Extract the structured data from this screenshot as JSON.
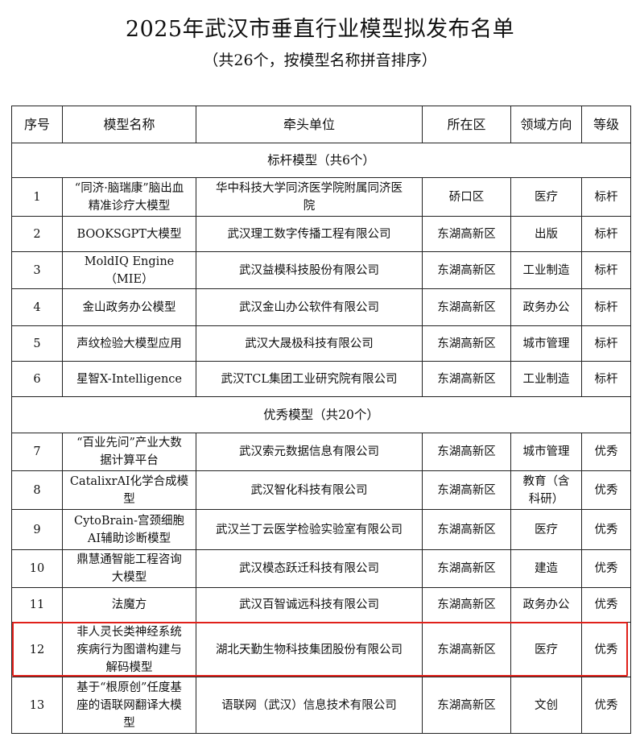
{
  "title": "2025年武汉市垂直行业模型拟发布名单",
  "subtitle": "（共26个，按模型名称拼音排序）",
  "columns": [
    "序号",
    "模型名称",
    "牵头单位",
    "所在区",
    "领域方向",
    "等级"
  ],
  "sections": [
    {
      "label": "标杆模型（共6个）",
      "rows": [
        {
          "no": "1",
          "name": "“同济·脑瑞康”脑出血\n精准诊疗大模型",
          "org": "华中科技大学同济医学院附属同济医\n院",
          "district": "硚口区",
          "field": "医疗",
          "level": "标杆"
        },
        {
          "no": "2",
          "name": "BOOKSGPT大模型",
          "org": "武汉理工数字传播工程有限公司",
          "district": "东湖高新区",
          "field": "出版",
          "level": "标杆"
        },
        {
          "no": "3",
          "name": "MoldIQ Engine\n（MIE）",
          "org": "武汉益模科技股份有限公司",
          "district": "东湖高新区",
          "field": "工业制造",
          "level": "标杆"
        },
        {
          "no": "4",
          "name": "金山政务办公模型",
          "org": "武汉金山办公软件有限公司",
          "district": "东湖高新区",
          "field": "政务办公",
          "level": "标杆"
        },
        {
          "no": "5",
          "name": "声纹检验大模型应用",
          "org": "武汉大晟极科技有限公司",
          "district": "东湖高新区",
          "field": "城市管理",
          "level": "标杆"
        },
        {
          "no": "6",
          "name": "星智X-Intelligence",
          "org": "武汉TCL集团工业研究院有限公司",
          "district": "东湖高新区",
          "field": "工业制造",
          "level": "标杆"
        }
      ]
    },
    {
      "label": "优秀模型（共20个）",
      "rows": [
        {
          "no": "7",
          "name": "“百业先问”产业大数\n据计算平台",
          "org": "武汉索元数据信息有限公司",
          "district": "东湖高新区",
          "field": "城市管理",
          "level": "优秀"
        },
        {
          "no": "8",
          "name": "CatalixrAI化学合成模\n型",
          "org": "武汉智化科技有限公司",
          "district": "东湖高新区",
          "field": "教育（含\n科研）",
          "level": "优秀"
        },
        {
          "no": "9",
          "name": "CytoBrain-宫颈细胞\nAI辅助诊断模型",
          "org": "武汉兰丁云医学检验实验室有限公司",
          "district": "东湖高新区",
          "field": "医疗",
          "level": "优秀"
        },
        {
          "no": "10",
          "name": "鼎慧通智能工程咨询\n大模型",
          "org": "武汉模态跃迁科技有限公司",
          "district": "东湖高新区",
          "field": "建造",
          "level": "优秀"
        },
        {
          "no": "11",
          "name": "法魔方",
          "org": "武汉百智诚远科技有限公司",
          "district": "东湖高新区",
          "field": "政务办公",
          "level": "优秀"
        },
        {
          "no": "12",
          "name": "非人灵长类神经系统\n疾病行为图谱构建与\n解码模型",
          "org": "湖北天勤生物科技集团股份有限公司",
          "district": "东湖高新区",
          "field": "医疗",
          "level": "优秀"
        },
        {
          "no": "13",
          "name": "基于“根原创”任度基\n座的语联网翻译大模\n型",
          "org": "语联网（武汉）信息技术有限公司",
          "district": "东湖高新区",
          "field": "文创",
          "level": "优秀"
        }
      ]
    }
  ],
  "highlight_color": "#e0201a"
}
